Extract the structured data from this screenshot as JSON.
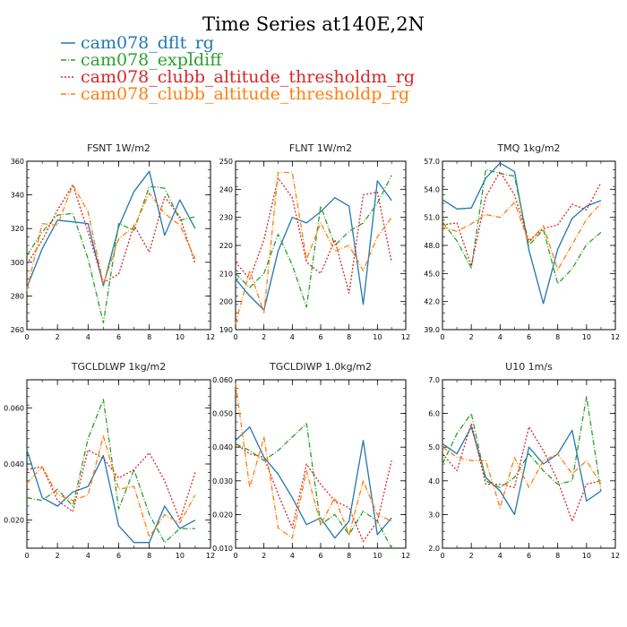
{
  "figure": {
    "title": "Time Series at140E,2N",
    "legend": [
      {
        "label": "cam078_dflt_rg",
        "color": "#1f77b4",
        "dash": "solid"
      },
      {
        "label": "cam078_expldiff",
        "color": "#2ca02c",
        "dash": "dashdot"
      },
      {
        "label": "cam078_clubb_altitude_thresholdm_rg",
        "color": "#d62728",
        "dash": "dotted"
      },
      {
        "label": "cam078_clubb_altitude_thresholdp_rg",
        "color": "#ff7f0e",
        "dash": "dashdot"
      }
    ]
  },
  "chart_data": [
    {
      "type": "line",
      "title": "FSNT",
      "units": "1W/m2",
      "xlim": [
        0,
        12
      ],
      "xticks": [
        0,
        2,
        4,
        6,
        8,
        10,
        12
      ],
      "ylim": [
        260,
        360
      ],
      "yticks": [
        "260",
        "280",
        "300",
        "320",
        "340",
        "360"
      ],
      "x": [
        0,
        1,
        2,
        3,
        4,
        5,
        6,
        7,
        8,
        9,
        10,
        11
      ],
      "series": [
        {
          "name": "cam078_dflt_rg",
          "values": [
            285,
            308,
            325,
            324,
            323,
            286,
            321,
            342,
            354,
            316,
            337,
            320
          ]
        },
        {
          "name": "cam078_expldiff",
          "values": [
            304,
            318,
            328,
            329,
            302,
            264,
            323,
            319,
            345,
            344,
            325,
            327
          ]
        },
        {
          "name": "cam078_clubb_altitude_thresholdm_rg",
          "values": [
            299,
            313,
            331,
            346,
            318,
            288,
            293,
            322,
            306,
            339,
            327,
            299
          ]
        },
        {
          "name": "cam078_clubb_altitude_thresholdp_rg",
          "values": [
            283,
            323,
            322,
            346,
            330,
            287,
            314,
            321,
            341,
            329,
            322,
            302
          ]
        }
      ]
    },
    {
      "type": "line",
      "title": "FLNT",
      "units": "1W/m2",
      "xlim": [
        0,
        12
      ],
      "xticks": [
        0,
        2,
        4,
        6,
        8,
        10,
        12
      ],
      "ylim": [
        190,
        250
      ],
      "yticks": [
        "190",
        "200",
        "210",
        "220",
        "230",
        "240",
        "250"
      ],
      "x": [
        0,
        1,
        2,
        3,
        4,
        5,
        6,
        7,
        8,
        9,
        10,
        11
      ],
      "series": [
        {
          "name": "cam078_dflt_rg",
          "values": [
            208,
            202,
            197,
            218,
            230,
            228,
            232,
            237,
            234,
            199,
            243,
            236
          ]
        },
        {
          "name": "cam078_expldiff",
          "values": [
            210,
            205,
            210,
            224,
            213,
            198,
            234,
            220,
            225,
            228,
            235,
            245
          ]
        },
        {
          "name": "cam078_clubb_altitude_thresholdm_rg",
          "values": [
            214,
            208,
            222,
            244,
            237,
            214,
            210,
            222,
            203,
            238,
            239,
            214
          ]
        },
        {
          "name": "cam078_clubb_altitude_thresholdp_rg",
          "values": [
            192,
            211,
            196,
            246,
            246,
            215,
            228,
            218,
            220,
            211,
            223,
            230
          ]
        }
      ]
    },
    {
      "type": "line",
      "title": "TMQ",
      "units": "1kg/m2",
      "xlim": [
        0,
        12
      ],
      "xticks": [
        0,
        2,
        4,
        6,
        8,
        10,
        12
      ],
      "ylim": [
        39.0,
        57.0
      ],
      "yticks": [
        "39.0",
        "42.0",
        "45.0",
        "48.0",
        "51.0",
        "54.0",
        "57.0"
      ],
      "x": [
        0,
        1,
        2,
        3,
        4,
        5,
        6,
        7,
        8,
        9,
        10,
        11
      ],
      "series": [
        {
          "name": "cam078_dflt_rg",
          "values": [
            52.9,
            51.9,
            52.0,
            55.2,
            56.8,
            55.9,
            47.5,
            41.8,
            47.6,
            50.9,
            52.2,
            52.8
          ]
        },
        {
          "name": "cam078_expldiff",
          "values": [
            50.5,
            48.5,
            45.6,
            56.1,
            55.7,
            55.4,
            48.0,
            49.7,
            43.9,
            45.5,
            48.1,
            49.4
          ]
        },
        {
          "name": "cam078_clubb_altitude_thresholdm_rg",
          "values": [
            50.2,
            50.4,
            45.8,
            53.2,
            55.9,
            53.4,
            48.5,
            49.8,
            50.2,
            52.4,
            51.8,
            54.7
          ]
        },
        {
          "name": "cam078_clubb_altitude_thresholdp_rg",
          "values": [
            50.0,
            49.5,
            50.3,
            51.3,
            51.0,
            52.6,
            48.3,
            50.1,
            45.4,
            48.1,
            50.8,
            52.5
          ]
        }
      ]
    },
    {
      "type": "line",
      "title": "TGCLDLWP",
      "units": "1kg/m2",
      "xlim": [
        0,
        12
      ],
      "xticks": [
        0,
        2,
        4,
        6,
        8,
        10,
        12
      ],
      "ylim": [
        0.01,
        0.07
      ],
      "yticks": [
        "0.020",
        "0.040",
        "0.060"
      ],
      "x": [
        0,
        1,
        2,
        3,
        4,
        5,
        6,
        7,
        8,
        9,
        10,
        11
      ],
      "series": [
        {
          "name": "cam078_dflt_rg",
          "values": [
            0.045,
            0.028,
            0.025,
            0.03,
            0.032,
            0.043,
            0.018,
            0.012,
            0.012,
            0.025,
            0.017,
            0.02
          ]
        },
        {
          "name": "cam078_expldiff",
          "values": [
            0.028,
            0.027,
            0.031,
            0.025,
            0.049,
            0.063,
            0.024,
            0.038,
            0.022,
            0.012,
            0.017,
            0.017
          ]
        },
        {
          "name": "cam078_clubb_altitude_thresholdm_rg",
          "values": [
            0.038,
            0.039,
            0.027,
            0.023,
            0.045,
            0.042,
            0.035,
            0.038,
            0.044,
            0.034,
            0.02,
            0.037
          ]
        },
        {
          "name": "cam078_clubb_altitude_thresholdp_rg",
          "values": [
            0.033,
            0.039,
            0.029,
            0.027,
            0.029,
            0.05,
            0.031,
            0.032,
            0.014,
            0.022,
            0.019,
            0.029
          ]
        }
      ]
    },
    {
      "type": "line",
      "title": "TGCLDIWP",
      "units": "1.0kg/m2",
      "xlim": [
        0,
        12
      ],
      "xticks": [
        0,
        2,
        4,
        6,
        8,
        10,
        12
      ],
      "ylim": [
        0.01,
        0.06
      ],
      "yticks": [
        "0.010",
        "0.020",
        "0.030",
        "0.040",
        "0.050",
        "0.060"
      ],
      "x": [
        0,
        1,
        2,
        3,
        4,
        5,
        6,
        7,
        8,
        9,
        10,
        11
      ],
      "series": [
        {
          "name": "cam078_dflt_rg",
          "values": [
            0.042,
            0.046,
            0.037,
            0.032,
            0.025,
            0.017,
            0.019,
            0.013,
            0.018,
            0.042,
            0.014,
            0.019
          ]
        },
        {
          "name": "cam078_expldiff",
          "values": [
            0.041,
            0.039,
            0.036,
            0.039,
            0.043,
            0.047,
            0.017,
            0.02,
            0.014,
            0.021,
            0.018,
            0.01
          ]
        },
        {
          "name": "cam078_clubb_altitude_thresholdm_rg",
          "values": [
            0.041,
            0.038,
            0.037,
            0.026,
            0.016,
            0.035,
            0.029,
            0.024,
            0.022,
            0.012,
            0.018,
            0.036
          ]
        },
        {
          "name": "cam078_clubb_altitude_thresholdp_rg",
          "values": [
            0.059,
            0.028,
            0.043,
            0.016,
            0.013,
            0.033,
            0.017,
            0.025,
            0.014,
            0.03,
            0.02,
            0.018
          ]
        }
      ]
    },
    {
      "type": "line",
      "title": "U10",
      "units": "1m/s",
      "xlim": [
        0,
        12
      ],
      "xticks": [
        0,
        2,
        4,
        6,
        8,
        10,
        12
      ],
      "ylim": [
        2.0,
        7.0
      ],
      "yticks": [
        "2.0",
        "3.0",
        "4.0",
        "5.0",
        "6.0",
        "7.0"
      ],
      "x": [
        0,
        1,
        2,
        3,
        4,
        5,
        6,
        7,
        8,
        9,
        10,
        11
      ],
      "series": [
        {
          "name": "cam078_dflt_rg",
          "values": [
            5.1,
            4.8,
            5.6,
            4.1,
            3.7,
            3.0,
            5.0,
            4.5,
            4.8,
            5.5,
            3.4,
            3.7
          ]
        },
        {
          "name": "cam078_expldiff",
          "values": [
            4.5,
            5.4,
            6.0,
            4.0,
            3.8,
            4.1,
            4.8,
            4.3,
            3.9,
            4.0,
            6.5,
            3.7
          ]
        },
        {
          "name": "cam078_clubb_altitude_thresholdm_rg",
          "values": [
            4.8,
            4.3,
            5.7,
            3.9,
            3.9,
            3.8,
            5.6,
            4.9,
            4.0,
            2.8,
            3.9,
            4.0
          ]
        },
        {
          "name": "cam078_clubb_altitude_thresholdp_rg",
          "values": [
            5.0,
            4.7,
            4.6,
            4.6,
            3.2,
            4.7,
            3.8,
            4.6,
            4.8,
            4.2,
            4.6,
            3.9
          ]
        }
      ]
    }
  ]
}
